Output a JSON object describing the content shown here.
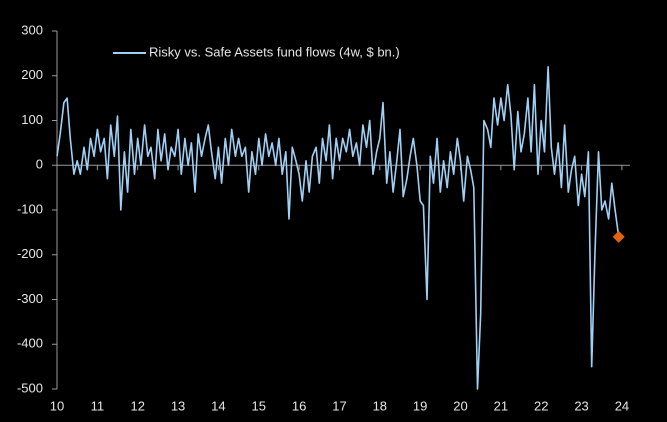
{
  "chart_data": {
    "type": "line",
    "legend_label_note": null,
    "x": [
      10,
      10.08,
      10.17,
      10.25,
      10.33,
      10.42,
      10.5,
      10.58,
      10.67,
      10.75,
      10.83,
      10.92,
      11,
      11.08,
      11.17,
      11.25,
      11.33,
      11.42,
      11.5,
      11.58,
      11.67,
      11.75,
      11.83,
      11.92,
      12,
      12.08,
      12.17,
      12.25,
      12.33,
      12.42,
      12.5,
      12.58,
      12.67,
      12.75,
      12.83,
      12.92,
      13,
      13.08,
      13.17,
      13.25,
      13.33,
      13.42,
      13.5,
      13.58,
      13.67,
      13.75,
      13.83,
      13.92,
      14,
      14.08,
      14.17,
      14.25,
      14.33,
      14.42,
      14.5,
      14.58,
      14.67,
      14.75,
      14.83,
      14.92,
      15,
      15.08,
      15.17,
      15.25,
      15.33,
      15.42,
      15.5,
      15.58,
      15.67,
      15.75,
      15.83,
      15.92,
      16,
      16.08,
      16.17,
      16.25,
      16.33,
      16.42,
      16.5,
      16.58,
      16.67,
      16.75,
      16.83,
      16.92,
      17,
      17.08,
      17.17,
      17.25,
      17.33,
      17.42,
      17.5,
      17.58,
      17.67,
      17.75,
      17.83,
      17.92,
      18,
      18.08,
      18.17,
      18.25,
      18.33,
      18.42,
      18.5,
      18.58,
      18.67,
      18.75,
      18.83,
      18.92,
      19,
      19.08,
      19.17,
      19.25,
      19.33,
      19.42,
      19.5,
      19.58,
      19.67,
      19.75,
      19.83,
      19.92,
      20,
      20.08,
      20.17,
      20.25,
      20.33,
      20.42,
      20.5,
      20.58,
      20.67,
      20.75,
      20.83,
      20.92,
      21,
      21.08,
      21.17,
      21.25,
      21.33,
      21.42,
      21.5,
      21.58,
      21.67,
      21.75,
      21.83,
      21.92,
      22,
      22.08,
      22.17,
      22.25,
      22.33,
      22.42,
      22.5,
      22.58,
      22.67,
      22.75,
      22.83,
      22.92,
      23,
      23.08,
      23.17,
      23.25,
      23.33,
      23.42,
      23.5,
      23.58,
      23.67,
      23.75,
      23.83,
      23.92
    ],
    "series": [
      {
        "name": "Risky vs. Safe Assets fund flows (4w, $ bn.)",
        "color": "#9fd0f5",
        "values": [
          20,
          70,
          140,
          150,
          60,
          -20,
          10,
          -20,
          40,
          -10,
          60,
          20,
          80,
          30,
          60,
          -30,
          90,
          20,
          110,
          -100,
          30,
          -60,
          80,
          -20,
          60,
          0,
          90,
          20,
          40,
          -30,
          80,
          10,
          70,
          -10,
          40,
          20,
          80,
          -20,
          60,
          0,
          50,
          -60,
          70,
          20,
          60,
          90,
          30,
          -30,
          40,
          -40,
          60,
          0,
          80,
          20,
          60,
          20,
          40,
          -60,
          30,
          -20,
          60,
          0,
          70,
          20,
          50,
          0,
          60,
          -20,
          30,
          -120,
          40,
          10,
          -20,
          -80,
          10,
          -60,
          20,
          40,
          -40,
          60,
          10,
          90,
          -30,
          60,
          10,
          60,
          30,
          80,
          20,
          50,
          0,
          90,
          40,
          100,
          -20,
          30,
          60,
          140,
          -40,
          30,
          -60,
          10,
          80,
          -70,
          -30,
          20,
          60,
          0,
          -80,
          -90,
          -300,
          20,
          -40,
          60,
          -60,
          10,
          -50,
          30,
          -20,
          60,
          10,
          -80,
          20,
          -10,
          -50,
          -500,
          -330,
          100,
          80,
          40,
          150,
          90,
          150,
          100,
          180,
          110,
          -10,
          120,
          30,
          70,
          150,
          30,
          180,
          -20,
          100,
          30,
          220,
          40,
          -20,
          50,
          -50,
          90,
          -60,
          -10,
          20,
          -90,
          -20,
          -70,
          30,
          -450,
          -200,
          30,
          -100,
          -80,
          -120,
          -40,
          -100,
          -160
        ]
      }
    ],
    "last_marker_color": "#e0650f",
    "xlim": [
      10,
      24.2
    ],
    "xticks": [
      10,
      11,
      12,
      13,
      14,
      15,
      16,
      17,
      18,
      19,
      20,
      21,
      22,
      23,
      24
    ],
    "ylim": [
      -500,
      300
    ],
    "yticks": [
      -500,
      -400,
      -300,
      -200,
      -100,
      0,
      100,
      200,
      300
    ],
    "legend": "upper left"
  }
}
